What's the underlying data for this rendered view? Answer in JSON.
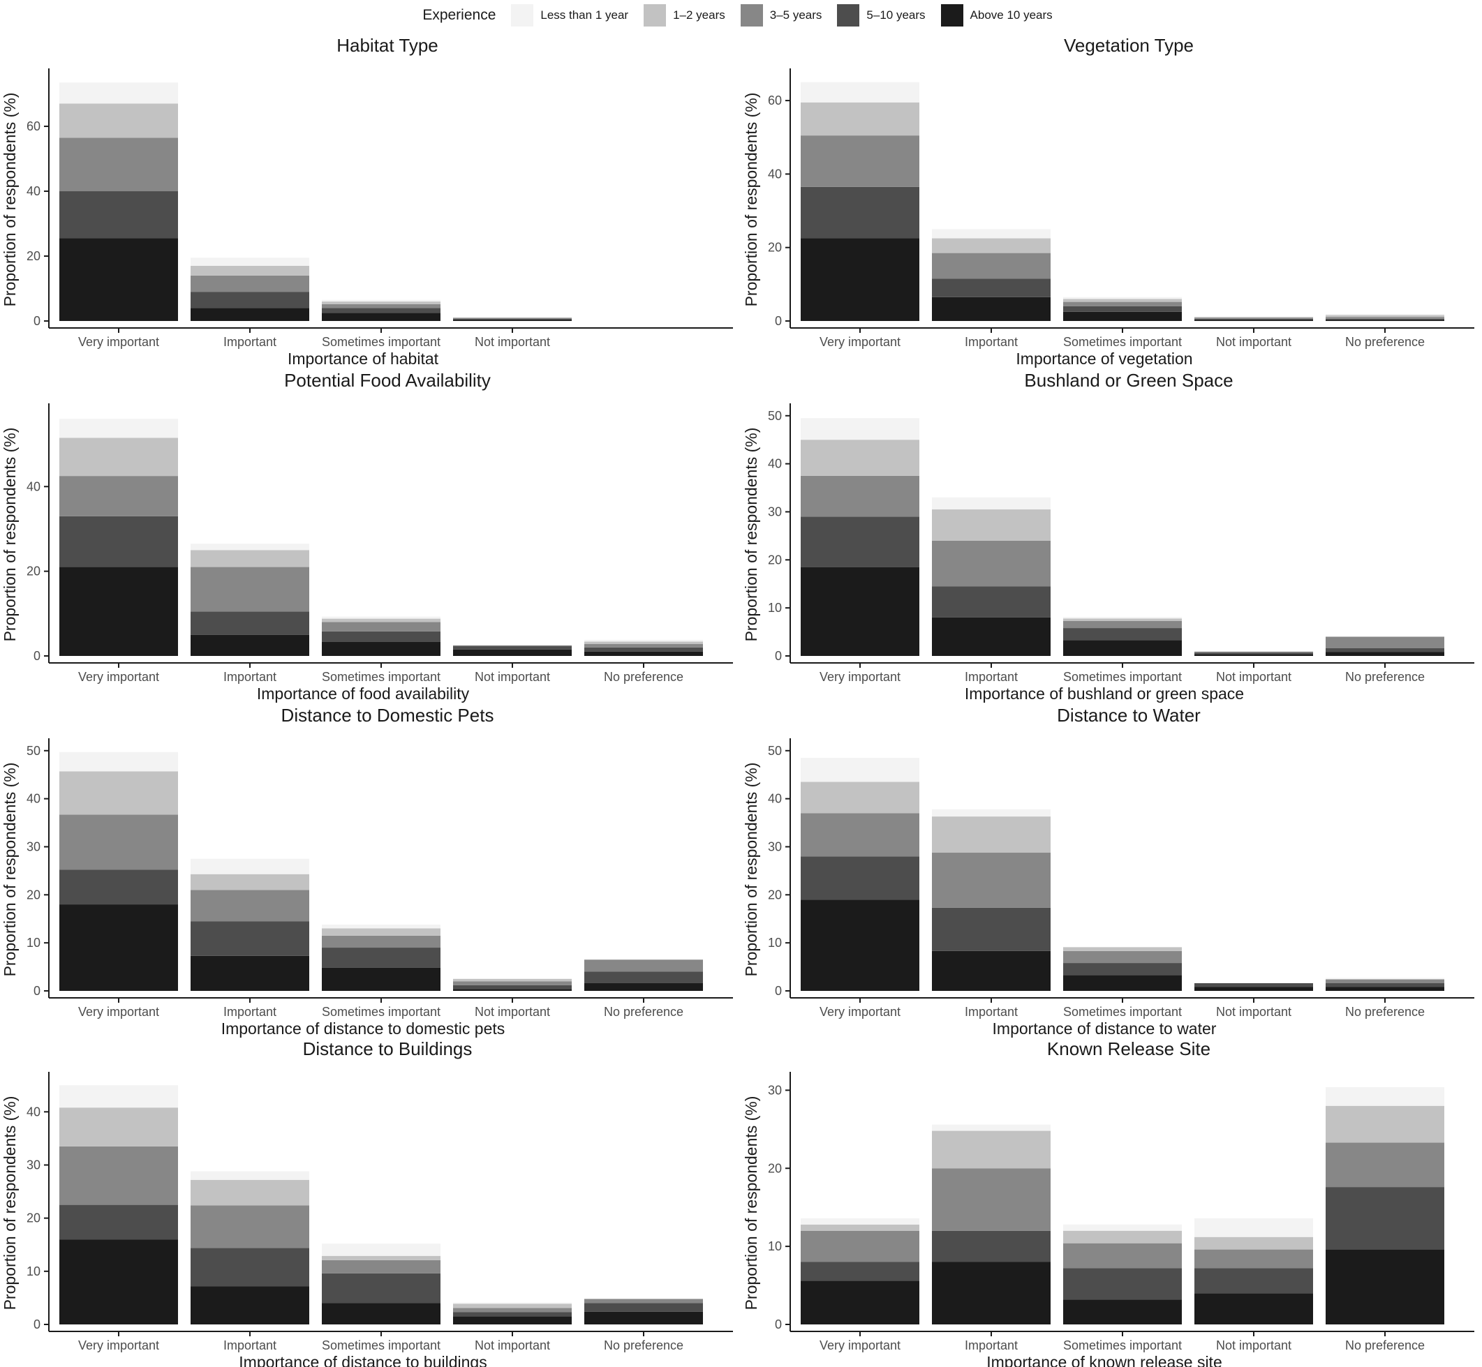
{
  "legend": {
    "title": "Experience",
    "items": [
      {
        "label": "Less than 1 year",
        "color": "#f3f3f3"
      },
      {
        "label": "1–2 years",
        "color": "#c2c2c2"
      },
      {
        "label": "3–5 years",
        "color": "#878787"
      },
      {
        "label": "5–10 years",
        "color": "#4d4d4d"
      },
      {
        "label": "Above 10 years",
        "color": "#1b1b1b"
      }
    ]
  },
  "ylabel": "Proportion of respondents (%)",
  "chart_data": [
    {
      "type": "bar",
      "stacked": true,
      "title": "Habitat Type",
      "xlabel": "Importance of habitat",
      "ylabel": "Proportion of respondents (%)",
      "categories": [
        "Very important",
        "Important",
        "Sometimes important",
        "Not important"
      ],
      "ylim": [
        0,
        77
      ],
      "yticks": [
        0,
        20,
        40,
        60
      ],
      "series": [
        {
          "name": "Above 10 years",
          "values": [
            25.5,
            4,
            2.5,
            0.4
          ]
        },
        {
          "name": "5–10 years",
          "values": [
            14.5,
            5,
            1.5,
            0.3
          ]
        },
        {
          "name": "3–5 years",
          "values": [
            16.5,
            5,
            1.2,
            0.3
          ]
        },
        {
          "name": "1–2 years",
          "values": [
            10.5,
            3,
            0.8,
            0
          ]
        },
        {
          "name": "Less than 1 year",
          "values": [
            6.5,
            2.5,
            0.5,
            0
          ]
        }
      ]
    },
    {
      "type": "bar",
      "stacked": true,
      "title": "Vegetation Type",
      "xlabel": "Importance of vegetation",
      "ylabel": "Proportion of respondents (%)",
      "categories": [
        "Very important",
        "Important",
        "Sometimes important",
        "Not important",
        "No preference"
      ],
      "ylim": [
        0,
        68
      ],
      "yticks": [
        0,
        20,
        40,
        60
      ],
      "series": [
        {
          "name": "Above 10 years",
          "values": [
            22.5,
            6.5,
            2.5,
            0.3,
            0.3
          ]
        },
        {
          "name": "5–10 years",
          "values": [
            14,
            5,
            1.5,
            0.3,
            0.3
          ]
        },
        {
          "name": "3–5 years",
          "values": [
            14,
            7,
            1.2,
            0.3,
            0.5
          ]
        },
        {
          "name": "1–2 years",
          "values": [
            9,
            4,
            0.8,
            0.2,
            0.5
          ]
        },
        {
          "name": "Less than 1 year",
          "values": [
            5.5,
            2.5,
            0.5,
            0,
            0.3
          ]
        }
      ]
    },
    {
      "type": "bar",
      "stacked": true,
      "title": "Potential Food Availability",
      "xlabel": "Importance of food availability",
      "ylabel": "Proportion of respondents (%)",
      "categories": [
        "Very important",
        "Important",
        "Sometimes important",
        "Not important",
        "No preference"
      ],
      "ylim": [
        0,
        59
      ],
      "yticks": [
        0,
        20,
        40
      ],
      "series": [
        {
          "name": "Above 10 years",
          "values": [
            21,
            5,
            3.3,
            1.5,
            1
          ]
        },
        {
          "name": "5–10 years",
          "values": [
            12,
            5.5,
            2.5,
            0.8,
            1
          ]
        },
        {
          "name": "3–5 years",
          "values": [
            9.5,
            10.5,
            2.2,
            0.2,
            0.8
          ]
        },
        {
          "name": "1–2 years",
          "values": [
            9,
            4,
            0.8,
            0,
            0.6
          ]
        },
        {
          "name": "Less than 1 year",
          "values": [
            4.5,
            1.5,
            0.5,
            0,
            0.4
          ]
        }
      ]
    },
    {
      "type": "bar",
      "stacked": true,
      "title": "Bushland or Green Space",
      "xlabel": "Importance of bushland or green space",
      "ylabel": "Proportion of respondents (%)",
      "categories": [
        "Very important",
        "Important",
        "Sometimes important",
        "Not important",
        "No preference"
      ],
      "ylim": [
        0,
        52
      ],
      "yticks": [
        0,
        10,
        20,
        30,
        40,
        50
      ],
      "series": [
        {
          "name": "Above 10 years",
          "values": [
            18.5,
            8,
            3.3,
            0.4,
            0.8
          ]
        },
        {
          "name": "5–10 years",
          "values": [
            10.5,
            6.5,
            2.5,
            0.3,
            0.8
          ]
        },
        {
          "name": "3–5 years",
          "values": [
            8.5,
            9.5,
            1.5,
            0.2,
            2.4
          ]
        },
        {
          "name": "1–2 years",
          "values": [
            7.5,
            6.5,
            0.5,
            0,
            0
          ]
        },
        {
          "name": "Less than 1 year",
          "values": [
            4.5,
            2.5,
            0.3,
            0,
            0
          ]
        }
      ]
    },
    {
      "type": "bar",
      "stacked": true,
      "title": "Distance to Domestic Pets",
      "xlabel": "Importance of distance to domestic pets",
      "ylabel": "Proportion of respondents (%)",
      "categories": [
        "Very important",
        "Important",
        "Sometimes important",
        "Not important",
        "No preference"
      ],
      "ylim": [
        0,
        52
      ],
      "yticks": [
        0,
        10,
        20,
        30,
        40,
        50
      ],
      "series": [
        {
          "name": "Above 10 years",
          "values": [
            18,
            7.3,
            4.8,
            0.4,
            1.6
          ]
        },
        {
          "name": "5–10 years",
          "values": [
            7.2,
            7.2,
            4.2,
            0.8,
            2.4
          ]
        },
        {
          "name": "3–5 years",
          "values": [
            11.5,
            6.5,
            2.5,
            0.8,
            2.5
          ]
        },
        {
          "name": "1–2 years",
          "values": [
            9,
            3.3,
            1.5,
            0.5,
            0
          ]
        },
        {
          "name": "Less than 1 year",
          "values": [
            4,
            3.2,
            0.8,
            0,
            0
          ]
        }
      ]
    },
    {
      "type": "bar",
      "stacked": true,
      "title": "Distance to Water",
      "xlabel": "Importance of distance to water",
      "ylabel": "Proportion of respondents (%)",
      "categories": [
        "Very important",
        "Important",
        "Sometimes important",
        "Not important",
        "No preference"
      ],
      "ylim": [
        0,
        52
      ],
      "yticks": [
        0,
        10,
        20,
        30,
        40,
        50
      ],
      "series": [
        {
          "name": "Above 10 years",
          "values": [
            19,
            8.3,
            3.3,
            0.8,
            0.8
          ]
        },
        {
          "name": "5–10 years",
          "values": [
            9,
            9,
            2.5,
            0.8,
            0.8
          ]
        },
        {
          "name": "3–5 years",
          "values": [
            9,
            11.5,
            2.5,
            0,
            0.8
          ]
        },
        {
          "name": "1–2 years",
          "values": [
            6.5,
            7.5,
            0.8,
            0,
            0
          ]
        },
        {
          "name": "Less than 1 year",
          "values": [
            5,
            1.5,
            0,
            0,
            0.3
          ]
        }
      ]
    },
    {
      "type": "bar",
      "stacked": true,
      "title": "Distance to Buildings",
      "xlabel": "Importance of distance to buildings",
      "ylabel": "Proportion of respondents (%)",
      "categories": [
        "Very important",
        "Important",
        "Sometimes important",
        "Not important",
        "No preference"
      ],
      "ylim": [
        0,
        47
      ],
      "yticks": [
        0,
        10,
        20,
        30,
        40
      ],
      "series": [
        {
          "name": "Above 10 years",
          "values": [
            16,
            7.2,
            4,
            1.5,
            2.4
          ]
        },
        {
          "name": "5–10 years",
          "values": [
            6.5,
            7.2,
            5.6,
            0.8,
            1.6
          ]
        },
        {
          "name": "3–5 years",
          "values": [
            11,
            8,
            2.5,
            0.8,
            0.8
          ]
        },
        {
          "name": "1–2 years",
          "values": [
            7.3,
            4.8,
            0.8,
            0.8,
            0
          ]
        },
        {
          "name": "Less than 1 year",
          "values": [
            4.2,
            1.6,
            2.3,
            0.2,
            0
          ]
        }
      ]
    },
    {
      "type": "bar",
      "stacked": true,
      "title": "Known Release Site",
      "xlabel": "Importance of known release site",
      "ylabel": "Proportion of respondents (%)",
      "categories": [
        "Very important",
        "Important",
        "Sometimes important",
        "Not important",
        "No preference"
      ],
      "ylim": [
        0,
        32
      ],
      "yticks": [
        0,
        10,
        20,
        30
      ],
      "series": [
        {
          "name": "Above 10 years",
          "values": [
            5.6,
            8,
            3.2,
            4,
            9.6
          ]
        },
        {
          "name": "5–10 years",
          "values": [
            2.4,
            4,
            4,
            3.2,
            8
          ]
        },
        {
          "name": "3–5 years",
          "values": [
            4,
            8,
            3.2,
            2.4,
            5.7
          ]
        },
        {
          "name": "1–2 years",
          "values": [
            0.8,
            4.8,
            1.6,
            1.6,
            4.7
          ]
        },
        {
          "name": "Less than 1 year",
          "values": [
            0.8,
            0.8,
            0.8,
            2.4,
            2.4
          ]
        }
      ]
    }
  ]
}
